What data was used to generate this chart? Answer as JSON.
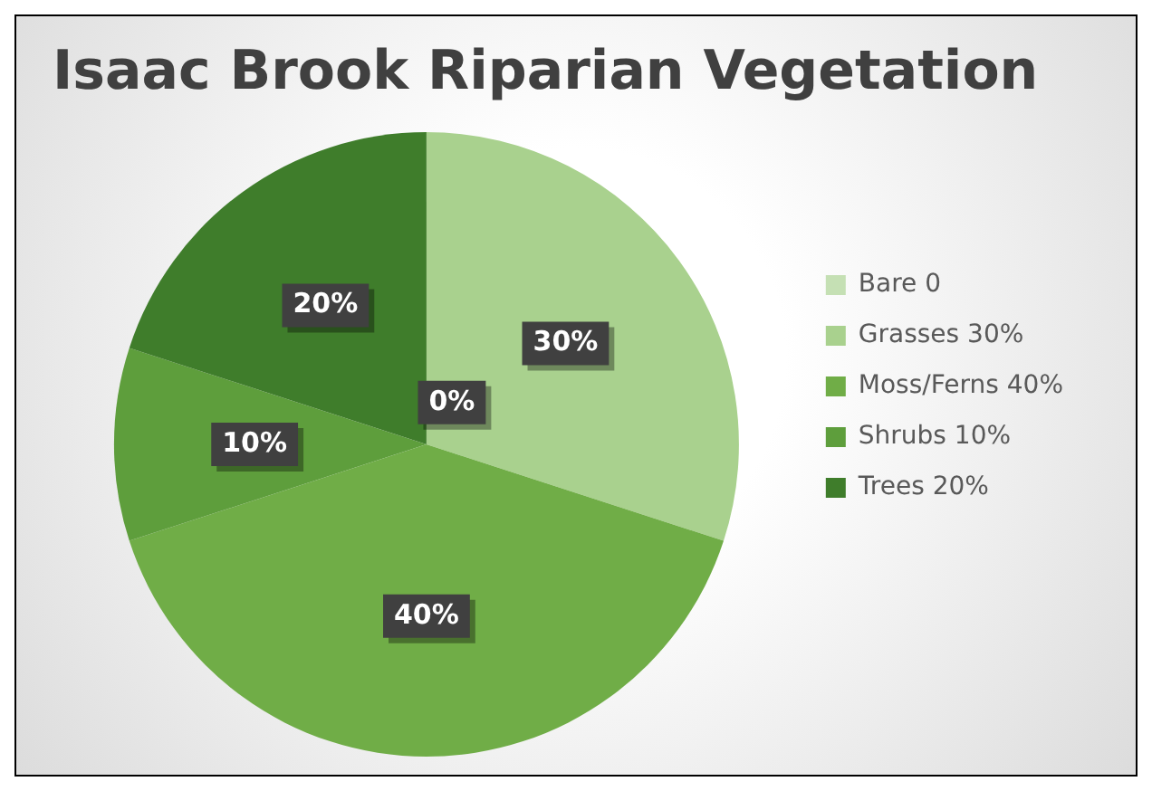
{
  "chart_data": {
    "type": "pie",
    "title": "Isaac Brook Riparian Vegetation",
    "categories": [
      "Bare 0",
      "Grasses 30%",
      "Moss/Ferns 40%",
      "Shrubs 10%",
      "Trees 20%"
    ],
    "values": [
      0,
      30,
      40,
      10,
      20
    ],
    "colors": [
      "#c5e0b4",
      "#a9d18e",
      "#70ad47",
      "#5e9e3c",
      "#3f7d2b"
    ],
    "value_labels": [
      "0%",
      "30%",
      "40%",
      "10%",
      "20%"
    ],
    "legend": "right"
  }
}
